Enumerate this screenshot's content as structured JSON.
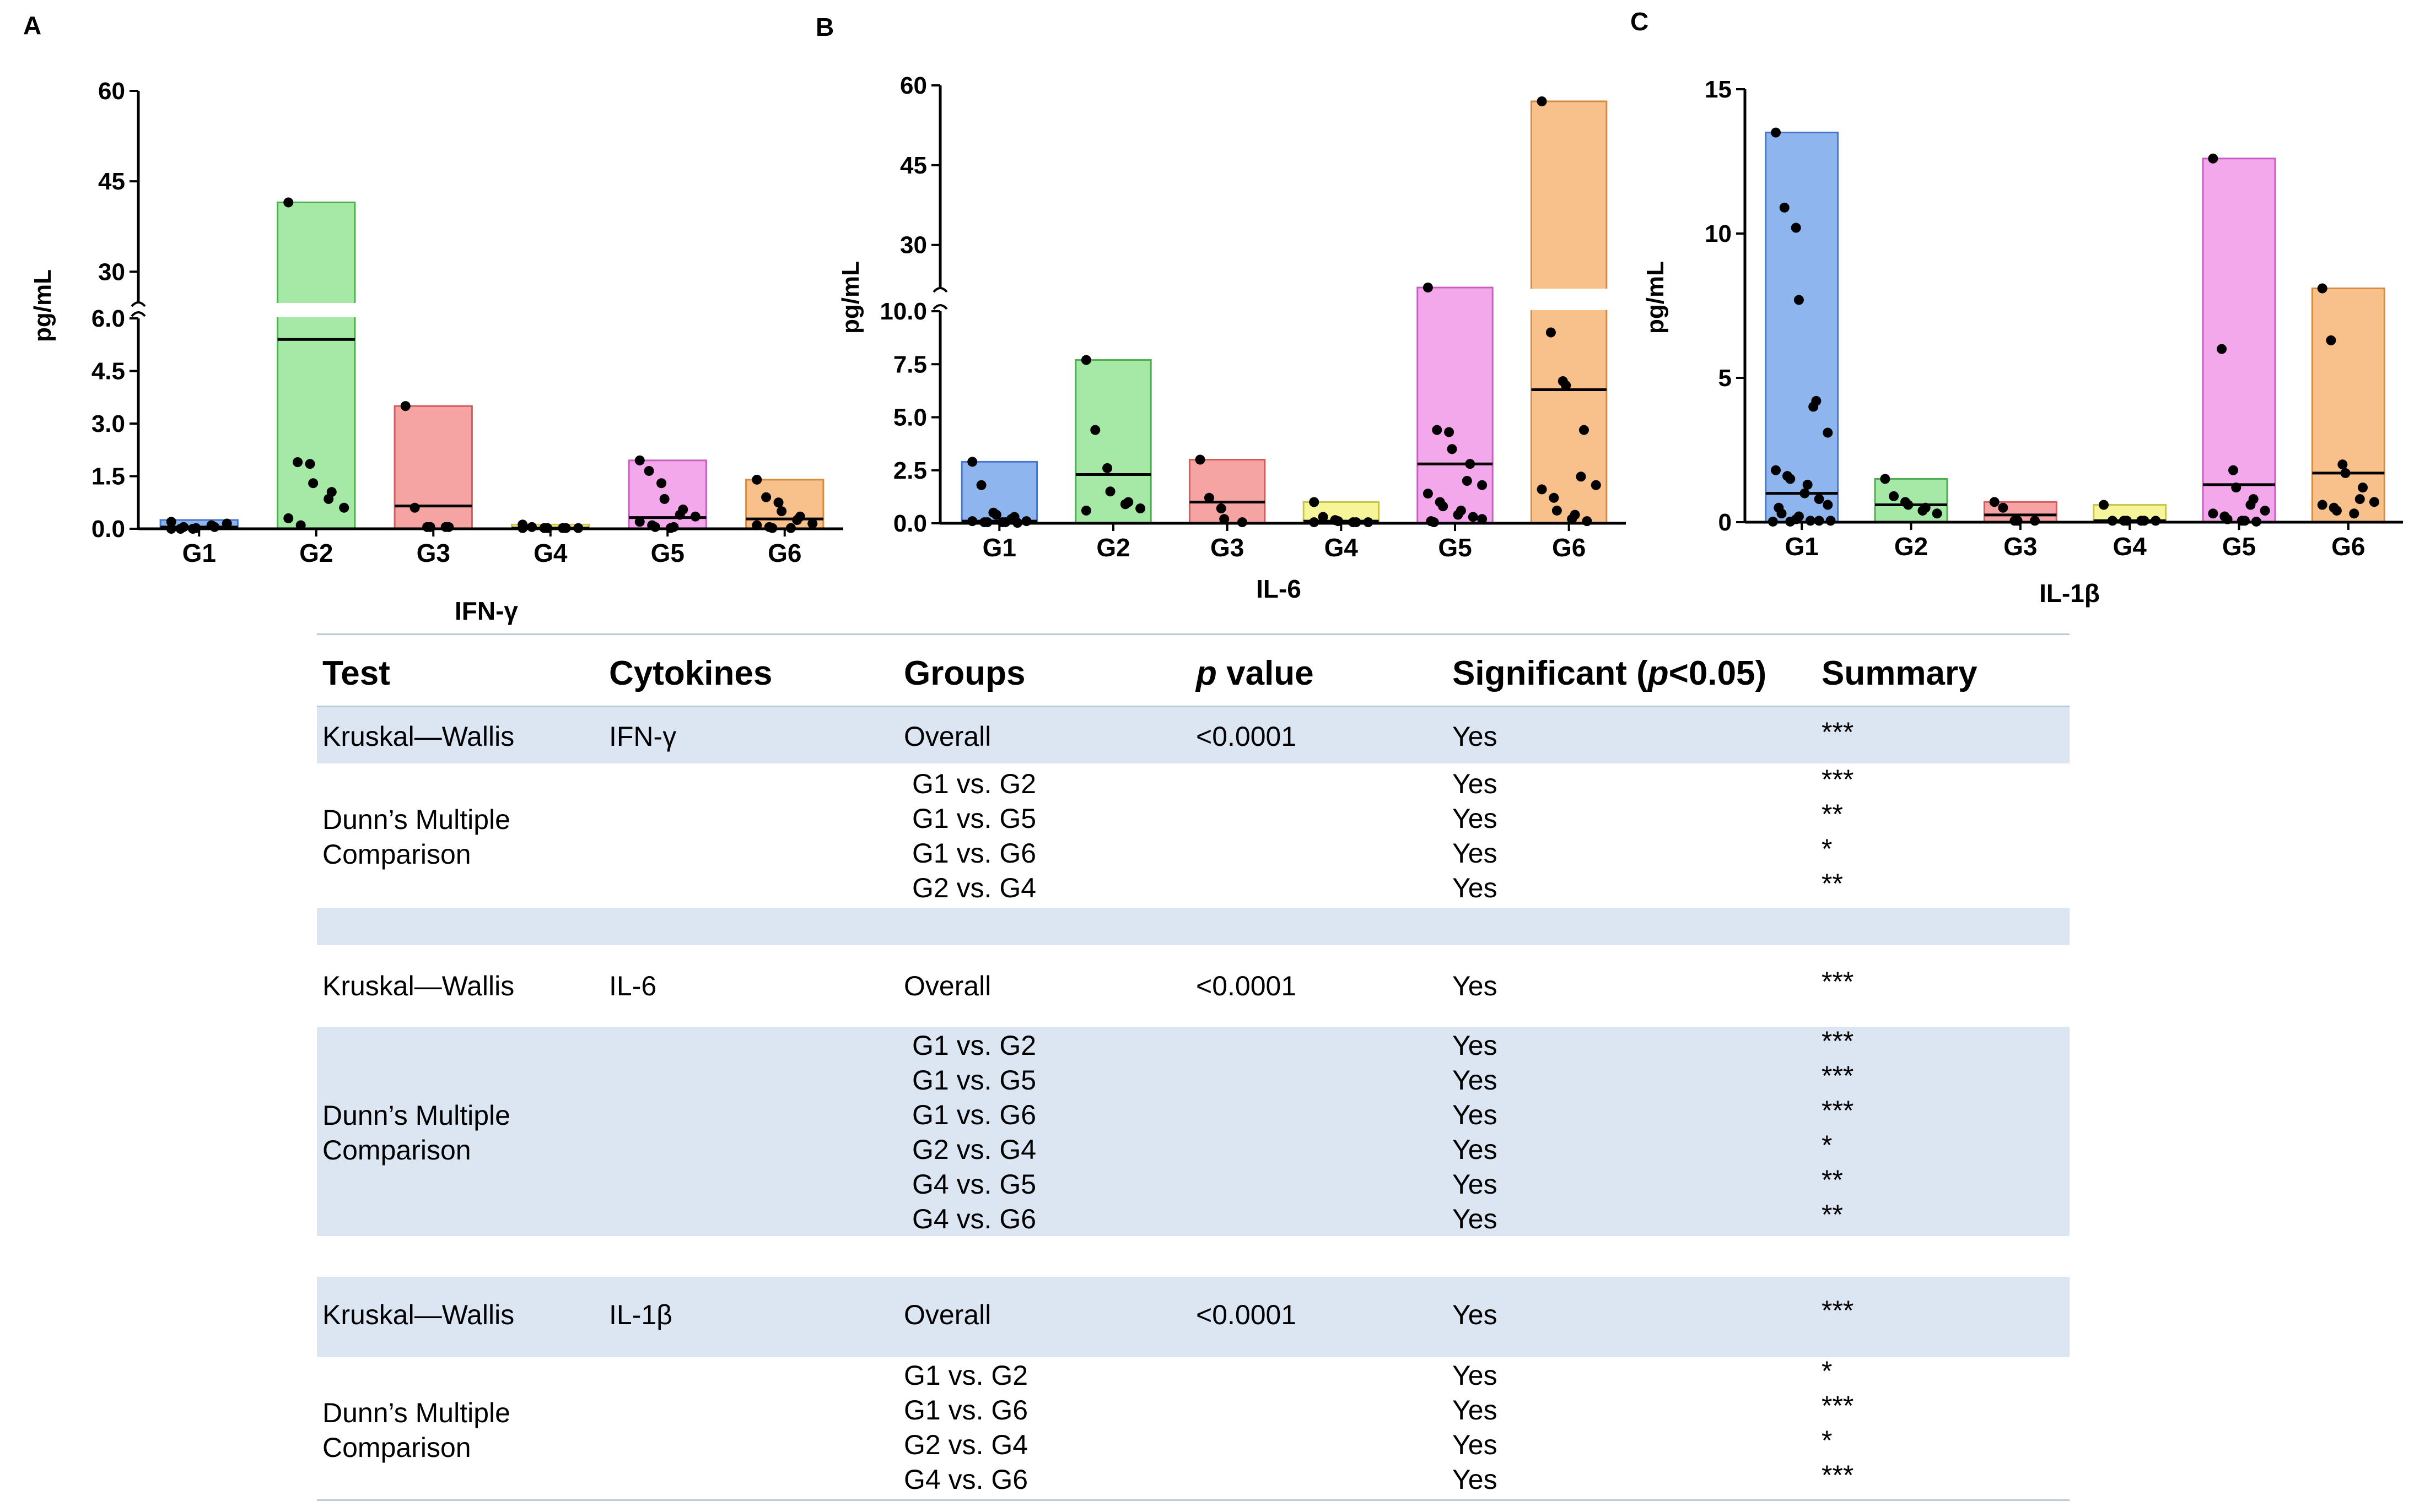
{
  "figure": {
    "panels": [
      "A",
      "B",
      "C"
    ]
  },
  "chart_data": [
    {
      "type": "bar",
      "panel": "A",
      "title": "",
      "xlabel": "IFN-γ",
      "ylabel": "pg/mL",
      "categories": [
        "G1",
        "G2",
        "G3",
        "G4",
        "G5",
        "G6"
      ],
      "colors": [
        "#8fb5ee",
        "#a6e8a6",
        "#f6a3a3",
        "#f6f59a",
        "#f4a8ec",
        "#f8c08a"
      ],
      "edge_colors": [
        "#4a77c9",
        "#4fae4f",
        "#d55a5a",
        "#c9c34a",
        "#c85ec4",
        "#d88a3e"
      ],
      "bar_top": [
        0.25,
        41.5,
        3.5,
        0.12,
        1.95,
        1.4
      ],
      "median": [
        0.05,
        5.4,
        0.65,
        0.02,
        0.32,
        0.28
      ],
      "points": [
        [
          0.0,
          0.0,
          0.0,
          0.02,
          0.05,
          0.1,
          0.15,
          0.2,
          0.05
        ],
        [
          41.5,
          1.9,
          1.85,
          1.3,
          1.05,
          0.85,
          0.6,
          0.3,
          0.1
        ],
        [
          3.5,
          0.6,
          0.05,
          0.05,
          0.05,
          0.05
        ],
        [
          0.12,
          0.05,
          0.02,
          0.02,
          0.02,
          0.02,
          0.02,
          0.02
        ],
        [
          1.95,
          1.65,
          1.3,
          0.85,
          0.55,
          0.4,
          0.35,
          0.2,
          0.1,
          0.05,
          0.05,
          0.02
        ],
        [
          1.4,
          0.9,
          0.75,
          0.5,
          0.35,
          0.25,
          0.15,
          0.1,
          0.05,
          0.02,
          0.02
        ]
      ],
      "ylim": [
        0,
        60
      ],
      "axis_break": {
        "lower": [
          0,
          6
        ],
        "upper": [
          25,
          60
        ]
      },
      "yticks_lower": [
        0.0,
        1.5,
        3.0,
        4.5,
        6.0
      ],
      "yticks_upper": [
        30,
        45,
        60
      ],
      "ytick_labels_lower": [
        "0.0",
        "1.5",
        "3.0",
        "4.5",
        "6.0"
      ],
      "ytick_labels_upper": [
        "30",
        "45",
        "60"
      ]
    },
    {
      "type": "bar",
      "panel": "B",
      "title": "",
      "xlabel": "IL-6",
      "ylabel": "pg/mL",
      "categories": [
        "G1",
        "G2",
        "G3",
        "G4",
        "G5",
        "G6"
      ],
      "colors": [
        "#8fb5ee",
        "#a6e8a6",
        "#f6a3a3",
        "#f6f59a",
        "#f4a8ec",
        "#f8c08a"
      ],
      "edge_colors": [
        "#4a77c9",
        "#4fae4f",
        "#d55a5a",
        "#c9c34a",
        "#c85ec4",
        "#d88a3e"
      ],
      "bar_top": [
        2.9,
        7.7,
        3.0,
        1.0,
        20.5,
        57.0
      ],
      "median": [
        0.1,
        2.3,
        1.0,
        0.1,
        2.8,
        6.3
      ],
      "points": [
        [
          2.9,
          1.8,
          0.5,
          0.4,
          0.3,
          0.2,
          0.1,
          0.1,
          0.05,
          0.05,
          0.05,
          0.05,
          0.02
        ],
        [
          7.7,
          4.4,
          2.6,
          1.5,
          1.0,
          0.9,
          0.7,
          0.6
        ],
        [
          3.0,
          1.2,
          0.7,
          0.2,
          0.05
        ],
        [
          1.0,
          0.3,
          0.15,
          0.1,
          0.05,
          0.05,
          0.05,
          0.05
        ],
        [
          20.5,
          4.4,
          4.3,
          3.5,
          2.8,
          2.0,
          1.8,
          1.4,
          1.0,
          0.8,
          0.6,
          0.4,
          0.3,
          0.2,
          0.1,
          0.05
        ],
        [
          57.0,
          9.0,
          6.7,
          6.5,
          4.4,
          2.2,
          1.8,
          1.6,
          1.2,
          0.6,
          0.4,
          0.2,
          0.1
        ]
      ],
      "ylim": [
        0,
        60
      ],
      "axis_break": {
        "lower": [
          0,
          10
        ],
        "upper": [
          22,
          60
        ]
      },
      "yticks_lower": [
        0.0,
        2.5,
        5.0,
        7.5,
        10.0
      ],
      "yticks_upper": [
        30,
        45,
        60
      ],
      "ytick_labels_lower": [
        "0.0",
        "2.5",
        "5.0",
        "7.5",
        "10.0"
      ],
      "ytick_labels_upper": [
        "30",
        "45",
        "60"
      ]
    },
    {
      "type": "bar",
      "panel": "C",
      "title": "",
      "xlabel": "IL-1β",
      "ylabel": "pg/mL",
      "categories": [
        "G1",
        "G2",
        "G3",
        "G4",
        "G5",
        "G6"
      ],
      "colors": [
        "#8fb5ee",
        "#a6e8a6",
        "#f6a3a3",
        "#f6f59a",
        "#f4a8ec",
        "#f8c08a"
      ],
      "edge_colors": [
        "#4a77c9",
        "#4fae4f",
        "#d55a5a",
        "#c9c34a",
        "#c85ec4",
        "#d88a3e"
      ],
      "bar_top": [
        13.5,
        1.5,
        0.7,
        0.6,
        12.6,
        8.1
      ],
      "median": [
        1.0,
        0.6,
        0.25,
        0.05,
        1.3,
        1.7
      ],
      "points": [
        [
          13.5,
          10.9,
          10.2,
          7.7,
          4.2,
          4.0,
          3.1,
          1.8,
          1.6,
          1.5,
          1.3,
          1.0,
          0.8,
          0.6,
          0.5,
          0.3,
          0.2,
          0.1,
          0.05,
          0.05,
          0.05,
          0.02,
          0.02
        ],
        [
          1.5,
          0.9,
          0.7,
          0.6,
          0.5,
          0.4,
          0.3
        ],
        [
          0.7,
          0.5,
          0.05,
          0.05,
          0.05
        ],
        [
          0.6,
          0.05,
          0.05,
          0.05,
          0.05,
          0.05,
          0.05
        ],
        [
          12.6,
          6.0,
          1.8,
          1.2,
          0.8,
          0.6,
          0.4,
          0.3,
          0.2,
          0.1,
          0.05,
          0.05,
          0.02
        ],
        [
          8.1,
          6.3,
          2.0,
          1.7,
          1.2,
          0.8,
          0.7,
          0.6,
          0.5,
          0.4,
          0.3
        ]
      ],
      "ylim": [
        0,
        15
      ],
      "yticks": [
        0,
        5,
        10,
        15
      ],
      "ytick_labels": [
        "0",
        "5",
        "10",
        "15"
      ]
    }
  ],
  "table": {
    "headers": {
      "test": "Test",
      "cytokines": "Cytokines",
      "groups": "Groups",
      "p_italic": "p",
      "p_rest": " value",
      "sig_a": "Significant (",
      "sig_italic": "p",
      "sig_b": "<0.05)",
      "summary": "Summary"
    },
    "sections": [
      {
        "overall": {
          "test": "Kruskal—Wallis",
          "cytokine": "IFN-γ",
          "group": "Overall",
          "p": "<0.0001",
          "sig": "Yes",
          "summary": "***"
        },
        "dunn_line1": "Dunn’s Multiple",
        "dunn_line2": "Comparison",
        "comparisons": [
          {
            "group": "G1 vs. G2",
            "sig": "Yes",
            "summary": "***"
          },
          {
            "group": "G1 vs. G5",
            "sig": "Yes",
            "summary": "**"
          },
          {
            "group": "G1 vs. G6",
            "sig": "Yes",
            "summary": "*"
          },
          {
            "group": "G2 vs. G4",
            "sig": "Yes",
            "summary": "**"
          }
        ]
      },
      {
        "overall": {
          "test": "Kruskal—Wallis",
          "cytokine": "IL-6",
          "group": "Overall",
          "p": "<0.0001",
          "sig": "Yes",
          "summary": "***"
        },
        "dunn_line1": "Dunn’s Multiple",
        "dunn_line2": "Comparison",
        "comparisons": [
          {
            "group": "G1 vs. G2",
            "sig": "Yes",
            "summary": "***"
          },
          {
            "group": "G1 vs. G5",
            "sig": "Yes",
            "summary": "***"
          },
          {
            "group": "G1 vs. G6",
            "sig": "Yes",
            "summary": "***"
          },
          {
            "group": "G2 vs. G4",
            "sig": "Yes",
            "summary": "*"
          },
          {
            "group": "G4 vs. G5",
            "sig": "Yes",
            "summary": "**"
          },
          {
            "group": "G4 vs. G6",
            "sig": "Yes",
            "summary": "**"
          }
        ]
      },
      {
        "overall": {
          "test": "Kruskal—Wallis",
          "cytokine": "IL-1β",
          "group": "Overall",
          "p": "<0.0001",
          "sig": "Yes",
          "summary": "***"
        },
        "dunn_line1": "Dunn’s Multiple",
        "dunn_line2": "Comparison",
        "comparisons": [
          {
            "group": "G1 vs. G2",
            "sig": "Yes",
            "summary": "*"
          },
          {
            "group": "G1 vs. G6",
            "sig": "Yes",
            "summary": "***"
          },
          {
            "group": "G2 vs. G4",
            "sig": "Yes",
            "summary": "*"
          },
          {
            "group": "G4 vs. G6",
            "sig": "Yes",
            "summary": "***"
          }
        ]
      }
    ]
  }
}
